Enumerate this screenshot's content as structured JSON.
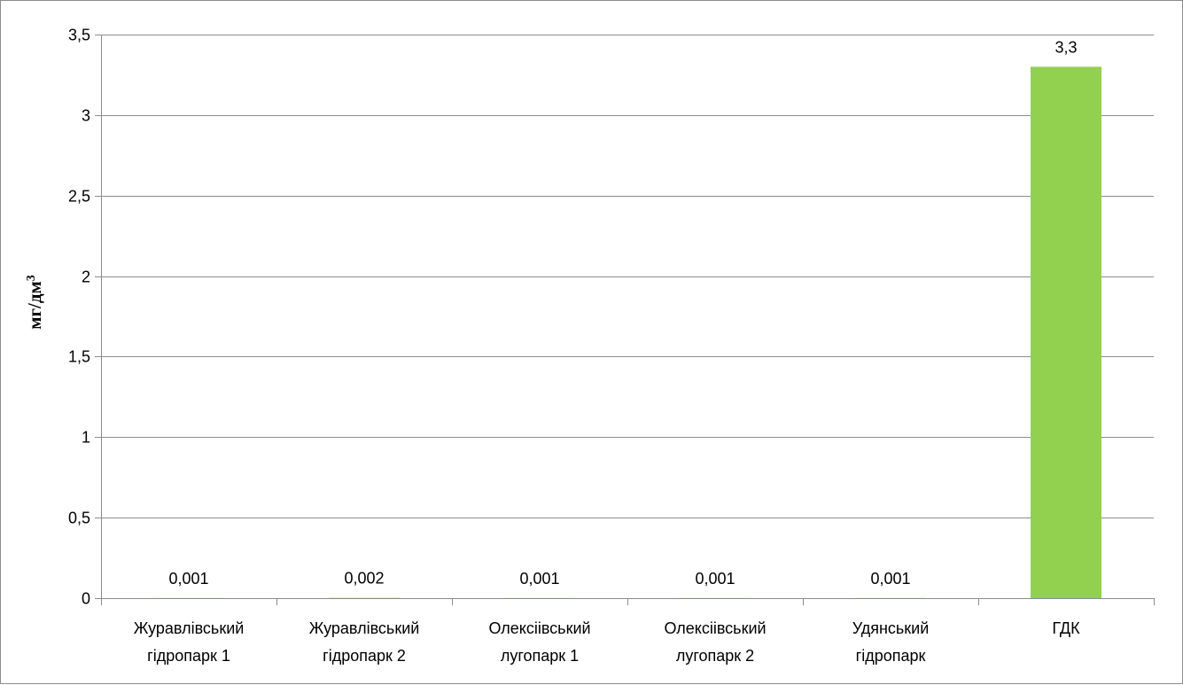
{
  "chart_data": {
    "type": "bar",
    "categories": [
      [
        "Журавлівський",
        "гідропарк 1"
      ],
      [
        "Журавлівський",
        "гідропарк 2"
      ],
      [
        "Олексіівський",
        "лугопарк 1"
      ],
      [
        "Олексіівський",
        "лугопарк 2"
      ],
      [
        "Удянський",
        "гідропарк"
      ],
      [
        "ГДК"
      ]
    ],
    "values": [
      0.001,
      0.002,
      0.001,
      0.001,
      0.001,
      3.3
    ],
    "data_labels": [
      "0,001",
      "0,002",
      "0,001",
      "0,001",
      "0,001",
      "3,3"
    ],
    "ylabel": "мг/дм",
    "ylabel_superscript": "3",
    "ylim": [
      0,
      3.5
    ],
    "yticks": [
      0,
      0.5,
      1,
      1.5,
      2,
      2.5,
      3,
      3.5
    ],
    "ytick_labels": [
      "0",
      "0,5",
      "1",
      "1,5",
      "2",
      "2,5",
      "3",
      "3,5"
    ],
    "grid": true,
    "bar_color": "#92d050",
    "gridline_color": "#8c8c8c"
  }
}
